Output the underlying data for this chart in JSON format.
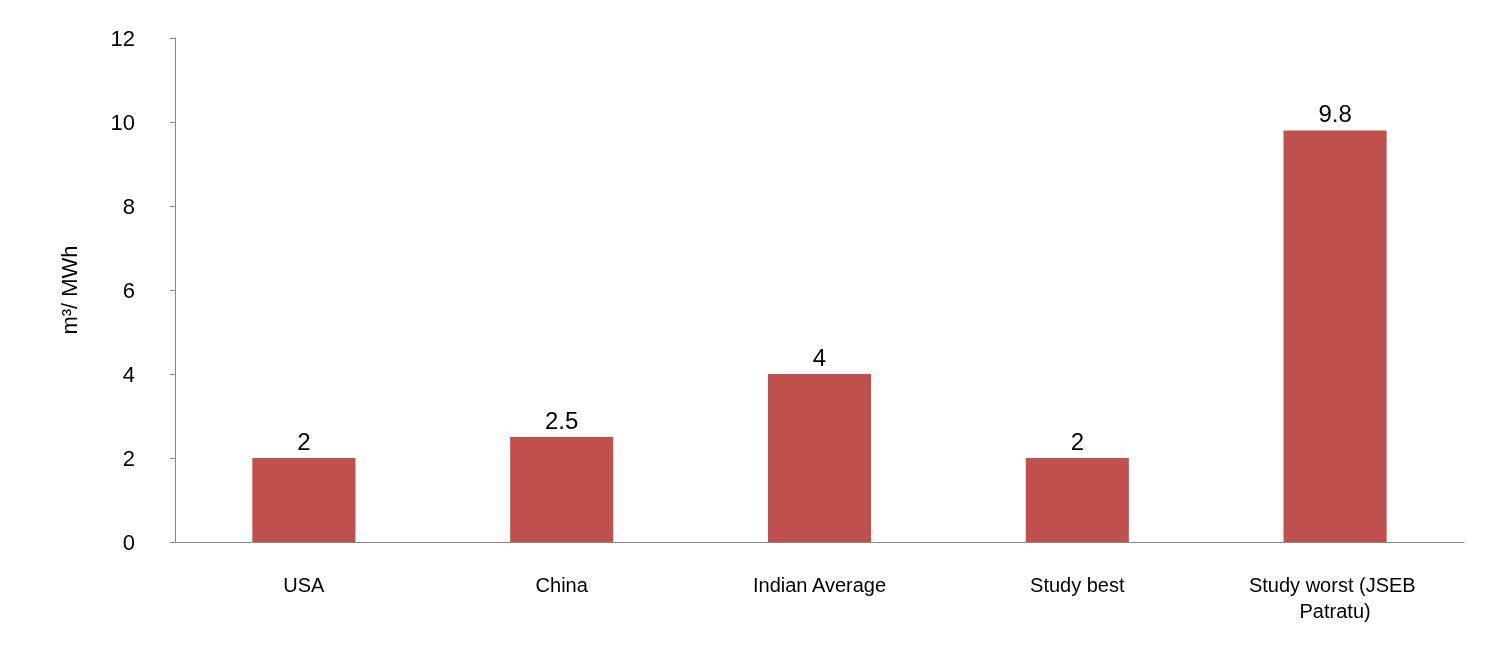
{
  "chart_data": {
    "type": "bar",
    "ylabel": "m³/ MWh",
    "categories": [
      "USA",
      "China",
      "Indian Average",
      "Study best",
      "Study worst (JSEB Patratu)"
    ],
    "values": [
      2,
      2.5,
      4,
      2,
      9.8
    ],
    "color": "#c0504d",
    "ylim": [
      0,
      12
    ],
    "yticks": [
      0,
      2,
      4,
      6,
      8,
      10,
      12
    ],
    "grid": false,
    "data_labels": true
  }
}
